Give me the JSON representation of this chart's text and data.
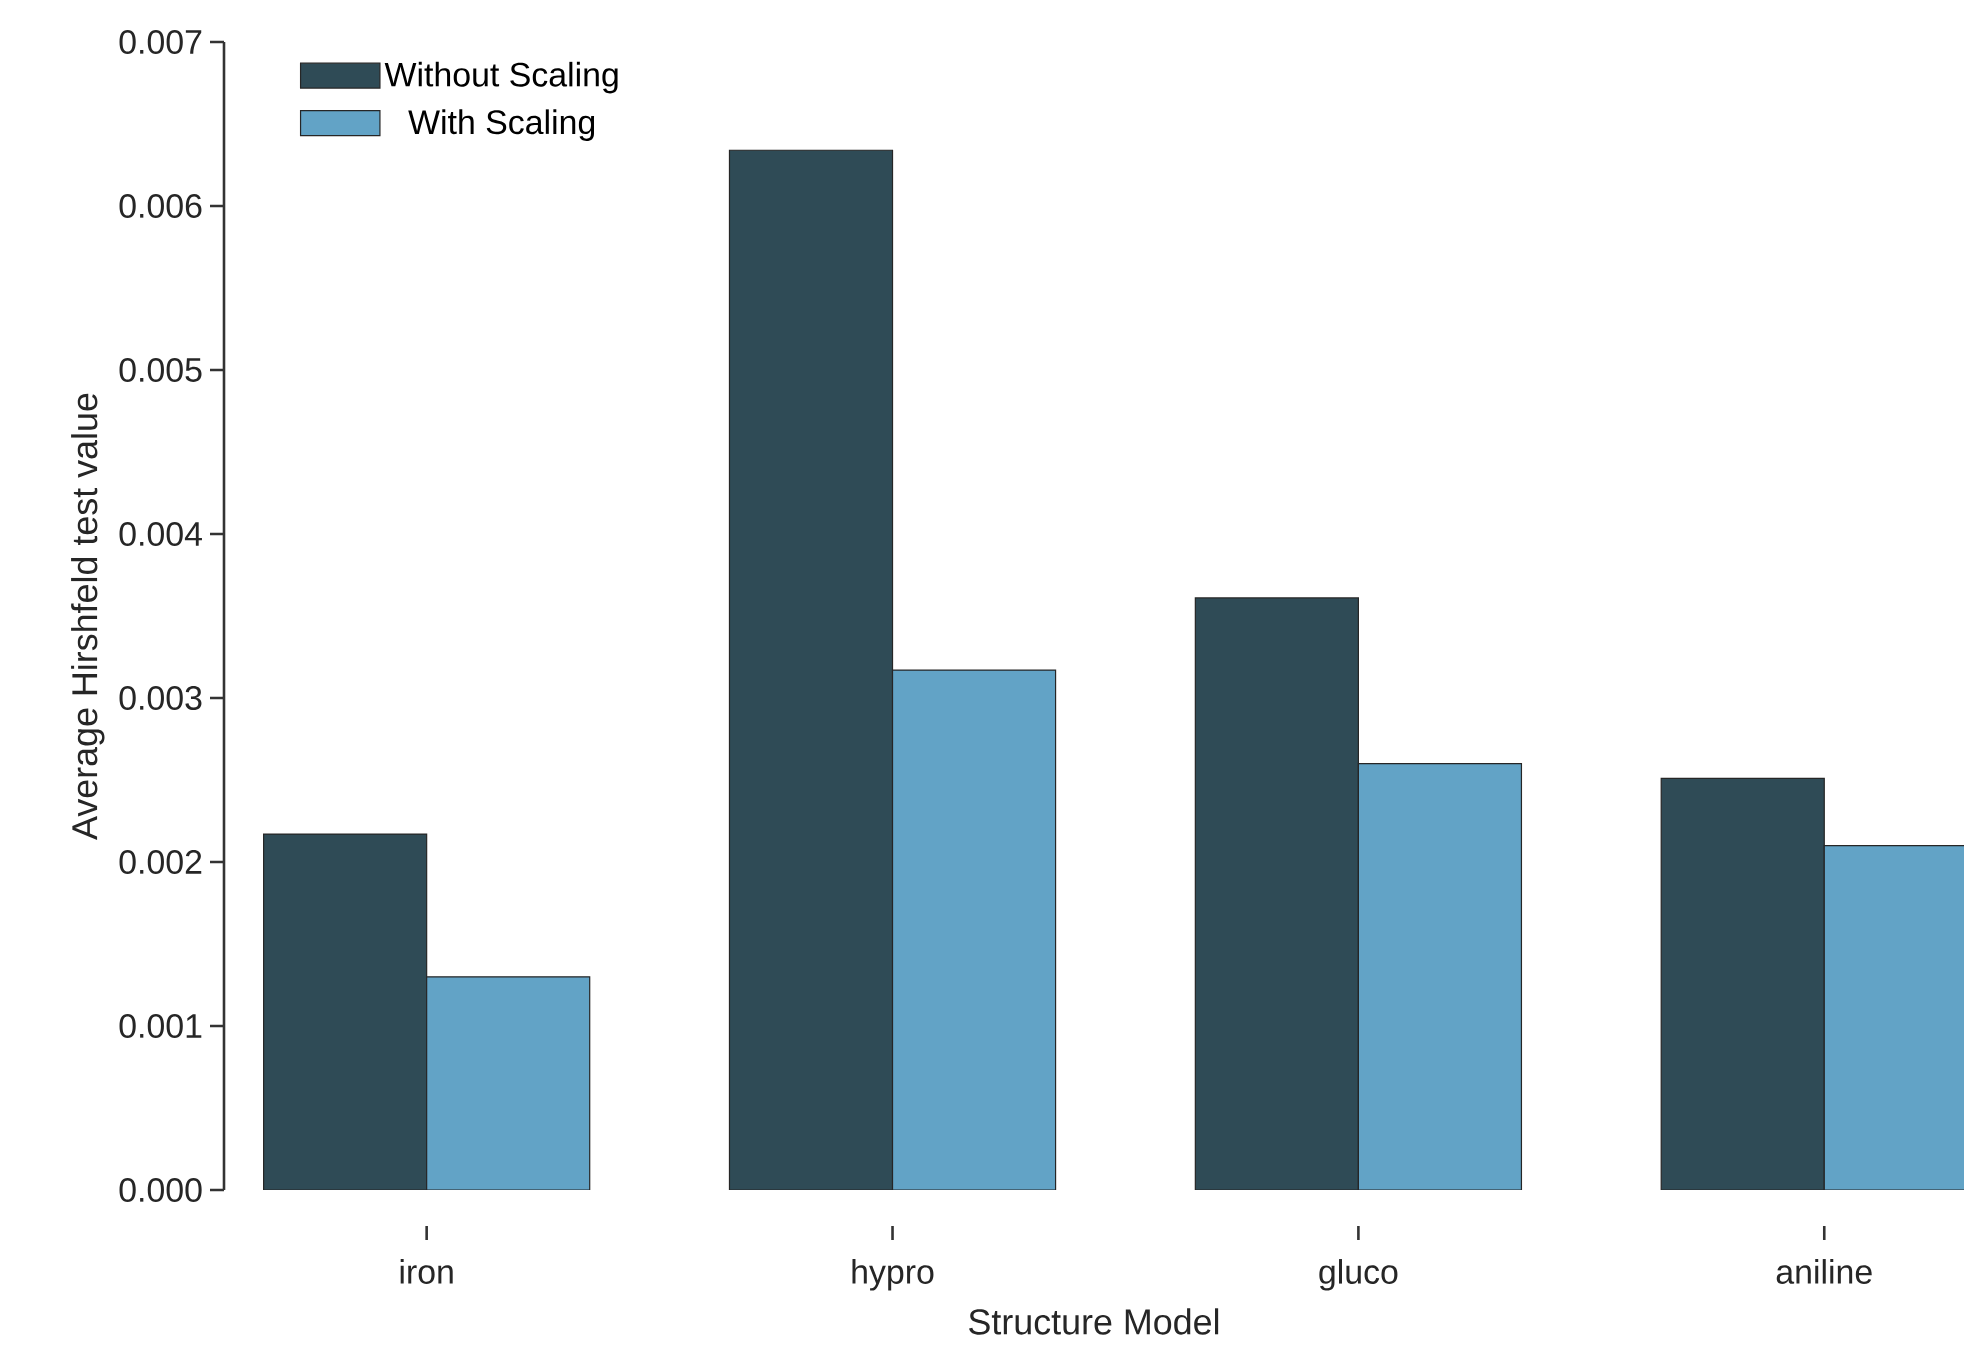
{
  "chart_data": {
    "type": "bar",
    "xlabel": "Structure Model",
    "ylabel": "Average Hirshfeld test value",
    "categories": [
      "iron",
      "hypro",
      "gluco",
      "aniline"
    ],
    "series": [
      {
        "name": "Without Scaling",
        "color": "#2f4b56",
        "values": [
          0.00217,
          0.00634,
          0.00361,
          0.00251
        ]
      },
      {
        "name": "With Scaling",
        "color": "#62a3c6",
        "values": [
          0.0013,
          0.00317,
          0.0026,
          0.0021
        ]
      }
    ],
    "ylim": [
      0,
      0.007
    ],
    "yticks": [
      {
        "value": 0,
        "label": "0.000"
      },
      0.001,
      0.002,
      0.003,
      0.004,
      0.005,
      0.006,
      0.007
    ],
    "grid": false,
    "legend": "top left"
  }
}
